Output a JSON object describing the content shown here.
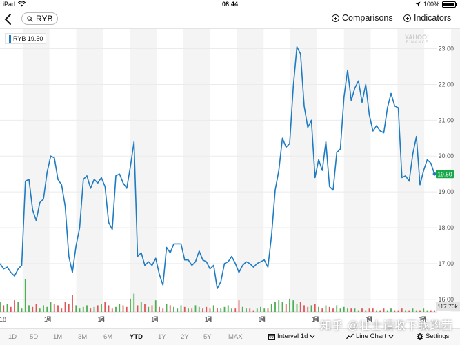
{
  "status_bar": {
    "device": "iPad",
    "time": "08:44",
    "battery": "100%"
  },
  "toolbar": {
    "ticker": "RYB",
    "comparisons_label": "Comparisons",
    "indicators_label": "Indicators"
  },
  "legend": {
    "label": "RYB 19.50",
    "color": "#1e7bc2"
  },
  "watermark": {
    "brand": "YAHOO!",
    "sub": "FINANCE"
  },
  "overlay_text": "知乎 @壮士请收下我的茜",
  "range_bar": {
    "ranges": [
      "1D",
      "5D",
      "1M",
      "3M",
      "6M",
      "YTD",
      "1Y",
      "2Y",
      "5Y",
      "MAX"
    ],
    "selected": "YTD",
    "interval_label": "Interval 1d",
    "chart_type_label": "Line Chart",
    "settings_label": "Settings"
  },
  "chart_data": {
    "type": "line",
    "series": [
      {
        "name": "RYB",
        "values": [
          17.0,
          16.85,
          16.9,
          16.75,
          16.65,
          16.85,
          16.95,
          19.3,
          19.35,
          18.5,
          18.2,
          18.7,
          18.8,
          19.55,
          20.0,
          19.95,
          19.35,
          19.2,
          18.6,
          17.2,
          16.75,
          17.5,
          18.0,
          19.35,
          19.45,
          19.1,
          19.35,
          19.25,
          19.4,
          19.15,
          18.15,
          17.95,
          19.45,
          19.5,
          19.25,
          19.1,
          19.7,
          20.4,
          17.2,
          17.3,
          16.95,
          17.05,
          16.95,
          17.15,
          16.7,
          16.4,
          17.45,
          17.3,
          17.55,
          17.55,
          17.55,
          17.1,
          17.1,
          16.95,
          17.05,
          17.35,
          17.1,
          17.05,
          16.85,
          16.95,
          16.3,
          16.5,
          17.0,
          17.05,
          17.2,
          17.0,
          16.75,
          16.95,
          17.05,
          17.0,
          16.9,
          17.0,
          17.05,
          17.1,
          16.9,
          17.8,
          19.05,
          19.6,
          20.5,
          20.25,
          20.35,
          21.95,
          23.05,
          22.85,
          21.4,
          20.8,
          21.0,
          19.4,
          19.9,
          19.6,
          20.4,
          19.15,
          19.05,
          20.1,
          20.2,
          21.65,
          22.4,
          21.55,
          21.9,
          22.1,
          21.5,
          22.0,
          21.15,
          20.7,
          20.85,
          20.7,
          20.65,
          21.35,
          21.75,
          21.4,
          21.35,
          19.4,
          19.45,
          19.3,
          20.05,
          20.55,
          19.2,
          19.6,
          19.9,
          19.8,
          19.5
        ],
        "last": 19.5
      }
    ],
    "x_tick_labels": [
      "18",
      "14",
      "月",
      "14",
      "月",
      "14",
      "月",
      "14",
      "月",
      "14",
      "月",
      "14",
      "月",
      "14",
      "月",
      "14",
      "月"
    ],
    "y_ticks": [
      16.0,
      17.0,
      18.0,
      19.0,
      20.0,
      21.0,
      22.0,
      23.0
    ],
    "ylim": [
      15.65,
      23.55
    ],
    "volume": {
      "max_label": "117.70k",
      "values": [
        0.3,
        0.2,
        0.25,
        0.15,
        0.35,
        0.3,
        0.1,
        1.0,
        0.2,
        0.15,
        0.25,
        0.1,
        0.2,
        0.15,
        0.3,
        0.25,
        0.2,
        0.1,
        0.3,
        0.25,
        0.5,
        0.2,
        0.1,
        0.15,
        0.2,
        0.1,
        0.15,
        0.2,
        0.25,
        0.3,
        0.2,
        0.1,
        0.15,
        0.25,
        0.2,
        0.15,
        0.4,
        0.55,
        0.2,
        0.3,
        0.25,
        0.15,
        0.2,
        0.35,
        0.15,
        0.1,
        0.25,
        0.2,
        0.15,
        0.1,
        0.2,
        0.15,
        0.1,
        0.1,
        0.2,
        0.15,
        0.1,
        0.15,
        0.1,
        0.2,
        0.1,
        0.1,
        0.15,
        0.2,
        0.1,
        0.1,
        0.35,
        0.15,
        0.1,
        0.1,
        0.05,
        0.1,
        0.15,
        0.1,
        0.1,
        0.25,
        0.3,
        0.35,
        0.3,
        0.25,
        0.4,
        0.35,
        0.25,
        0.3,
        0.2,
        0.15,
        0.2,
        0.25,
        0.15,
        0.1,
        0.2,
        0.15,
        0.1,
        0.2,
        0.1,
        0.15,
        0.1,
        0.1,
        0.1,
        0.05,
        0.1,
        0.05,
        0.1,
        0.1,
        0.05,
        0.05,
        0.1,
        0.05,
        0.1,
        0.05,
        0.05,
        0.1,
        0.05,
        0.05,
        0.1,
        0.05,
        0.05,
        0.1,
        0.05,
        0.05,
        0.05
      ],
      "up_color": "#4caf50",
      "down_color": "#e05555"
    },
    "grid": true
  }
}
